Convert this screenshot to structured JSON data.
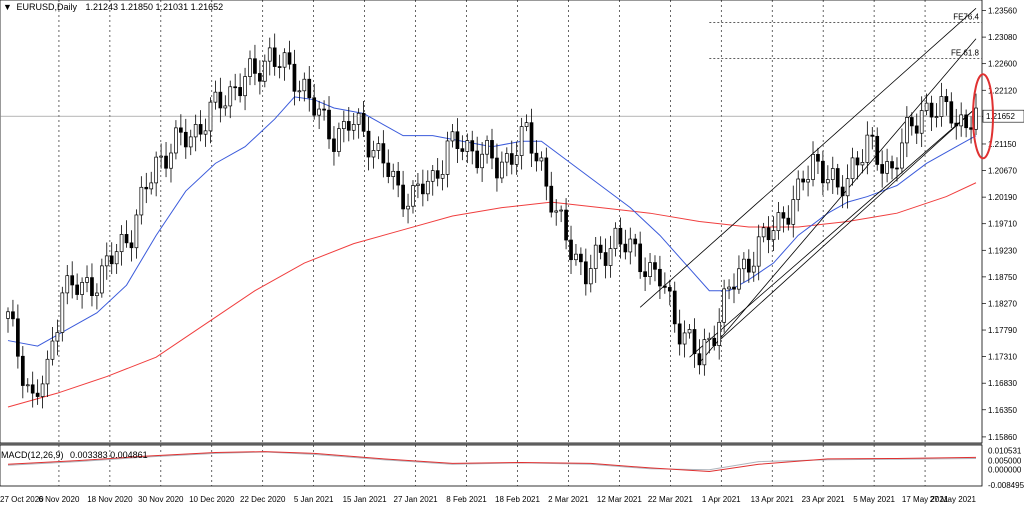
{
  "header": {
    "symbol": "EURUSD,Daily",
    "ohlc": "1.21243 1.21850 1.21031 1.21652"
  },
  "macd": {
    "label": "MACD(12,26,9)",
    "values": "0.003383 0.004861",
    "axis_labels": [
      "0.010531",
      "0.005000",
      "0.000000",
      "-0.008495"
    ],
    "axis_values": [
      0.010531,
      0.005,
      0.0,
      -0.008495
    ]
  },
  "colors": {
    "candle": "#000000",
    "ma_fast": "#3b5bdb",
    "ma_slow": "#f03e3e",
    "macd_main": "#e03131",
    "macd_signal": "#adb5bd",
    "channel": "#000000",
    "highlight": "#e03131"
  },
  "chart_data": {
    "type": "candlestick",
    "symbol": "EURUSD",
    "timeframe": "Daily",
    "price_axis": {
      "ticks": [
        1.2356,
        1.2308,
        1.226,
        1.2212,
        1.2165,
        1.2115,
        1.2067,
        1.2019,
        1.1971,
        1.1923,
        1.1875,
        1.1827,
        1.1779,
        1.1731,
        1.1683,
        1.1635,
        1.1586
      ],
      "tick_labels": [
        "1.23560",
        "1.23080",
        "1.22600",
        "1.22120",
        "1.21652",
        "1.21150",
        "1.20670",
        "1.20190",
        "1.19710",
        "1.19230",
        "1.18750",
        "1.18270",
        "1.17790",
        "1.17310",
        "1.16830",
        "1.16350",
        "1.15860"
      ],
      "current_price": 1.21652,
      "current_price_label": "1.21652",
      "ylim": [
        1.1575,
        1.2375
      ]
    },
    "date_labels": [
      "27 Oct 2020",
      "6 Nov 2020",
      "18 Nov 2020",
      "30 Nov 2020",
      "10 Dec 2020",
      "22 Dec 2020",
      "5 Jan 2021",
      "15 Jan 2021",
      "27 Jan 2021",
      "8 Feb 2021",
      "18 Feb 2021",
      "2 Mar 2021",
      "12 Mar 2021",
      "22 Mar 2021",
      "1 Apr 2021",
      "13 Apr 2021",
      "23 Apr 2021",
      "5 May 2021",
      "17 May 2021",
      "27 May 2021"
    ],
    "close_path": [
      [
        0,
        1.18
      ],
      [
        5,
        1.165
      ],
      [
        8,
        1.17
      ],
      [
        11,
        1.186
      ],
      [
        15,
        1.185
      ],
      [
        19,
        1.188
      ],
      [
        25,
        1.196
      ],
      [
        30,
        1.208
      ],
      [
        33,
        1.211
      ],
      [
        37,
        1.213
      ],
      [
        42,
        1.218
      ],
      [
        46,
        1.222
      ],
      [
        50,
        1.224
      ],
      [
        53,
        1.228
      ],
      [
        56,
        1.225
      ],
      [
        60,
        1.222
      ],
      [
        63,
        1.216
      ],
      [
        66,
        1.213
      ],
      [
        69,
        1.215
      ],
      [
        72,
        1.214
      ],
      [
        76,
        1.208
      ],
      [
        79,
        1.203
      ],
      [
        82,
        1.202
      ],
      [
        86,
        1.205
      ],
      [
        89,
        1.211
      ],
      [
        92,
        1.211
      ],
      [
        96,
        1.21
      ],
      [
        99,
        1.207
      ],
      [
        102,
        1.21
      ],
      [
        105,
        1.213
      ],
      [
        108,
        1.208
      ],
      [
        111,
        1.198
      ],
      [
        114,
        1.193
      ],
      [
        117,
        1.188
      ],
      [
        120,
        1.191
      ],
      [
        123,
        1.195
      ],
      [
        126,
        1.192
      ],
      [
        129,
        1.19
      ],
      [
        132,
        1.187
      ],
      [
        135,
        1.18
      ],
      [
        138,
        1.176
      ],
      [
        140,
        1.172
      ],
      [
        142,
        1.176
      ],
      [
        145,
        1.183
      ],
      [
        148,
        1.188
      ],
      [
        151,
        1.192
      ],
      [
        154,
        1.195
      ],
      [
        157,
        1.199
      ],
      [
        160,
        1.202
      ],
      [
        163,
        1.209
      ],
      [
        166,
        1.206
      ],
      [
        168,
        1.202
      ],
      [
        171,
        1.208
      ],
      [
        174,
        1.211
      ],
      [
        176,
        1.209
      ],
      [
        179,
        1.207
      ],
      [
        182,
        1.213
      ],
      [
        185,
        1.218
      ],
      [
        188,
        1.217
      ],
      [
        191,
        1.218
      ],
      [
        194,
        1.214
      ],
      [
        196,
        1.2165
      ]
    ],
    "ma_fast_path": [
      [
        0,
        1.176
      ],
      [
        6,
        1.175
      ],
      [
        12,
        1.178
      ],
      [
        18,
        1.181
      ],
      [
        24,
        1.186
      ],
      [
        30,
        1.195
      ],
      [
        36,
        1.203
      ],
      [
        42,
        1.208
      ],
      [
        48,
        1.211
      ],
      [
        54,
        1.216
      ],
      [
        58,
        1.22
      ],
      [
        62,
        1.2195
      ],
      [
        66,
        1.218
      ],
      [
        72,
        1.217
      ],
      [
        80,
        1.213
      ],
      [
        86,
        1.213
      ],
      [
        92,
        1.212
      ],
      [
        98,
        1.211
      ],
      [
        104,
        1.212
      ],
      [
        108,
        1.212
      ],
      [
        114,
        1.208
      ],
      [
        120,
        1.204
      ],
      [
        126,
        1.2
      ],
      [
        132,
        1.195
      ],
      [
        138,
        1.189
      ],
      [
        142,
        1.185
      ],
      [
        146,
        1.185
      ],
      [
        150,
        1.187
      ],
      [
        155,
        1.19
      ],
      [
        160,
        1.195
      ],
      [
        166,
        1.199
      ],
      [
        170,
        1.201
      ],
      [
        174,
        1.202
      ],
      [
        180,
        1.204
      ],
      [
        186,
        1.208
      ],
      [
        192,
        1.211
      ],
      [
        196,
        1.213
      ]
    ],
    "ma_slow_path": [
      [
        0,
        1.164
      ],
      [
        10,
        1.1665
      ],
      [
        20,
        1.1695
      ],
      [
        30,
        1.173
      ],
      [
        40,
        1.179
      ],
      [
        50,
        1.185
      ],
      [
        60,
        1.19
      ],
      [
        70,
        1.1935
      ],
      [
        80,
        1.196
      ],
      [
        90,
        1.1985
      ],
      [
        100,
        1.2
      ],
      [
        110,
        1.201
      ],
      [
        120,
        1.2
      ],
      [
        130,
        1.199
      ],
      [
        140,
        1.1975
      ],
      [
        150,
        1.1965
      ],
      [
        160,
        1.1965
      ],
      [
        170,
        1.1975
      ],
      [
        180,
        1.199
      ],
      [
        190,
        1.202
      ],
      [
        196,
        1.2045
      ]
    ],
    "channel_lines": [
      {
        "from": [
          128,
          1.182
        ],
        "to": [
          196,
          1.236
        ]
      },
      {
        "from": [
          138,
          1.173
        ],
        "to": [
          196,
          1.218
        ]
      },
      {
        "from": [
          144,
          1.176
        ],
        "to": [
          196,
          1.218
        ]
      },
      {
        "from": [
          140,
          1.172
        ],
        "to": [
          196,
          1.2305
        ]
      }
    ],
    "annotations": [
      {
        "text": "FE76.4",
        "price": 1.23343,
        "x_start": 142
      },
      {
        "text": "FE 61.8",
        "price": 1.2269,
        "x_start": 142
      }
    ],
    "macd_main_path": [
      [
        0,
        0.003
      ],
      [
        14,
        0.005
      ],
      [
        28,
        0.0075
      ],
      [
        42,
        0.0095
      ],
      [
        52,
        0.01
      ],
      [
        62,
        0.009
      ],
      [
        76,
        0.006
      ],
      [
        90,
        0.0035
      ],
      [
        104,
        0.004
      ],
      [
        118,
        0.0035
      ],
      [
        130,
        0.001
      ],
      [
        142,
        -0.001
      ],
      [
        152,
        0.003
      ],
      [
        166,
        0.006
      ],
      [
        180,
        0.0062
      ],
      [
        196,
        0.0068
      ]
    ],
    "macd_signal_path": [
      [
        0,
        0.0025
      ],
      [
        14,
        0.0045
      ],
      [
        28,
        0.007
      ],
      [
        42,
        0.009
      ],
      [
        52,
        0.0098
      ],
      [
        62,
        0.0085
      ],
      [
        76,
        0.0055
      ],
      [
        90,
        0.003
      ],
      [
        104,
        0.0038
      ],
      [
        118,
        0.003
      ],
      [
        130,
        0.0005
      ],
      [
        142,
        0.0
      ],
      [
        152,
        0.0045
      ],
      [
        166,
        0.0055
      ],
      [
        180,
        0.0058
      ],
      [
        196,
        0.0062
      ]
    ]
  }
}
